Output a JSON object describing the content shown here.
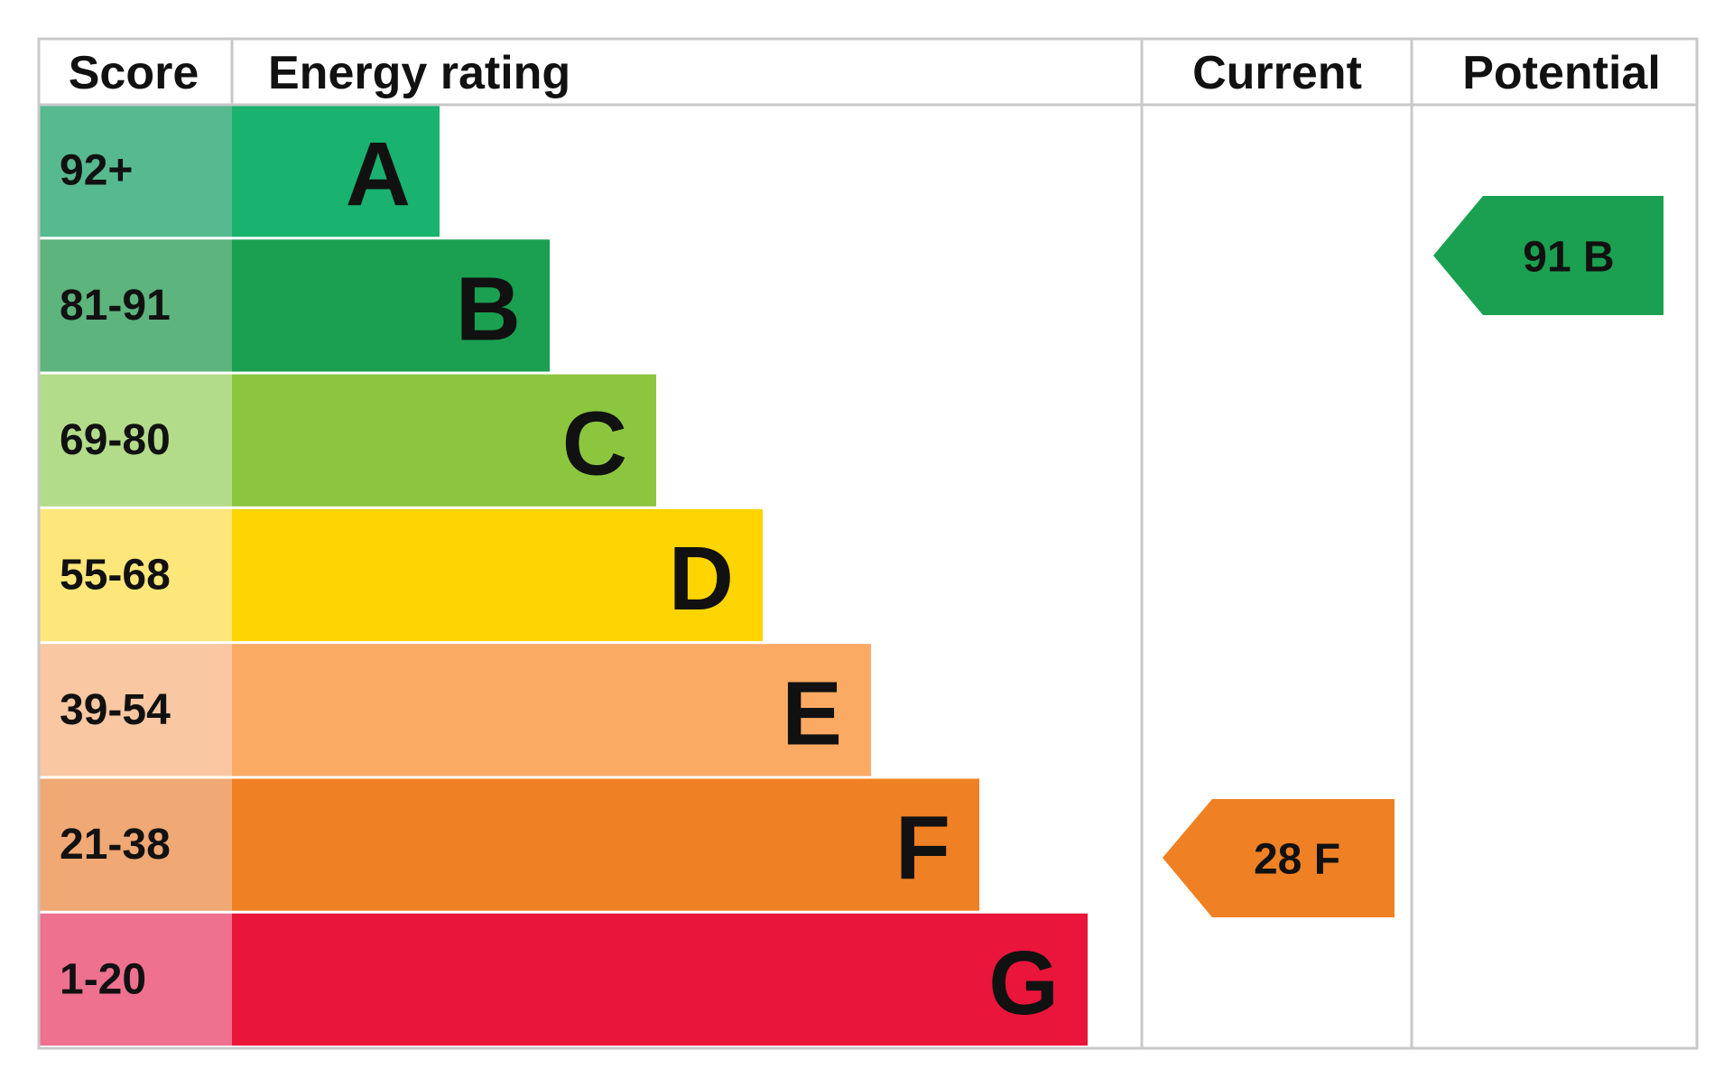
{
  "header": {
    "score": "Score",
    "rating": "Energy rating",
    "current": "Current",
    "potential": "Potential"
  },
  "bands": [
    {
      "score": "92+",
      "letter": "A",
      "color": "#19b36f",
      "score_color": "#57b98f"
    },
    {
      "score": "81-91",
      "letter": "B",
      "color": "#1aa050",
      "score_color": "#5db47c"
    },
    {
      "score": "69-80",
      "letter": "C",
      "color": "#8cc63e",
      "score_color": "#b3dc8a"
    },
    {
      "score": "55-68",
      "letter": "D",
      "color": "#fed500",
      "score_color": "#fde77a"
    },
    {
      "score": "39-54",
      "letter": "E",
      "color": "#fbaa64",
      "score_color": "#f9c7a2"
    },
    {
      "score": "21-38",
      "letter": "F",
      "color": "#ef8023",
      "score_color": "#f0a874"
    },
    {
      "score": "1-20",
      "letter": "G",
      "color": "#e9153b",
      "score_color": "#ee7190"
    }
  ],
  "current": {
    "label": "28 F",
    "color": "#ef8023"
  },
  "potential": {
    "label": "91 B",
    "color": "#1aa050"
  }
}
